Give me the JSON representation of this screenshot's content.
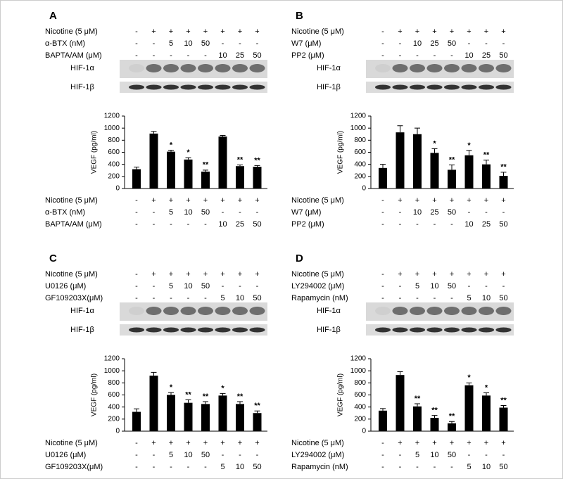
{
  "chart_data": [
    {
      "type": "bar",
      "panel": "A",
      "blot_labels": [
        "HIF-1α",
        "HIF-1β"
      ],
      "y_label": "VEGF (pg/ml)",
      "treatments": [
        {
          "label": "Nicotine (5 μM)",
          "values": [
            "-",
            "+",
            "+",
            "+",
            "+",
            "+",
            "+",
            "+"
          ]
        },
        {
          "label": "α-BTX (nM)",
          "values": [
            "-",
            "-",
            "5",
            "10",
            "50",
            "-",
            "-",
            "-"
          ]
        },
        {
          "label": "BAPTA/AM (μM)",
          "values": [
            "-",
            "-",
            "-",
            "-",
            "-",
            "10",
            "25",
            "50"
          ]
        }
      ],
      "values": [
        320,
        910,
        610,
        480,
        280,
        860,
        370,
        360
      ],
      "errors": [
        35,
        35,
        25,
        30,
        25,
        20,
        20,
        20
      ],
      "annotations": [
        null,
        null,
        "*",
        "*",
        "**",
        null,
        "**",
        "**"
      ],
      "color": "#000000",
      "ylim": [
        0,
        1200
      ],
      "yticks": [
        0,
        200,
        400,
        600,
        800,
        1000,
        1200
      ]
    },
    {
      "type": "bar",
      "panel": "B",
      "blot_labels": [
        "HIF-1α",
        "HIF-1β"
      ],
      "y_label": "VEGF (pg/ml)",
      "treatments": [
        {
          "label": "Nicotine (5 μM)",
          "values": [
            "-",
            "+",
            "+",
            "+",
            "+",
            "+",
            "+",
            "+"
          ]
        },
        {
          "label": "W7 (μM)",
          "values": [
            "-",
            "-",
            "10",
            "25",
            "50",
            "-",
            "-",
            "-"
          ]
        },
        {
          "label": "PP2 (μM)",
          "values": [
            "-",
            "-",
            "-",
            "-",
            "-",
            "10",
            "25",
            "50"
          ]
        }
      ],
      "values": [
        340,
        930,
        900,
        590,
        310,
        550,
        400,
        210
      ],
      "errors": [
        60,
        110,
        100,
        70,
        80,
        80,
        70,
        60
      ],
      "annotations": [
        null,
        null,
        null,
        "*",
        "**",
        "*",
        "**",
        "**"
      ],
      "color": "#000000",
      "ylim": [
        0,
        1200
      ],
      "yticks": [
        0,
        200,
        400,
        600,
        800,
        1000,
        1200
      ]
    },
    {
      "type": "bar",
      "panel": "C",
      "blot_labels": [
        "HIF-1α",
        "HIF-1β"
      ],
      "y_label": "VEGF (pg/ml)",
      "treatments": [
        {
          "label": "Nicotine (5 μM)",
          "values": [
            "-",
            "+",
            "+",
            "+",
            "+",
            "+",
            "+",
            "+"
          ]
        },
        {
          "label": "U0126 (μM)",
          "values": [
            "-",
            "-",
            "5",
            "10",
            "50",
            "-",
            "-",
            "-"
          ]
        },
        {
          "label": "GF109203X(μM)",
          "values": [
            "-",
            "-",
            "-",
            "-",
            "-",
            "5",
            "10",
            "50"
          ]
        }
      ],
      "values": [
        320,
        920,
        600,
        470,
        450,
        590,
        450,
        300
      ],
      "errors": [
        50,
        55,
        40,
        50,
        40,
        35,
        40,
        35
      ],
      "annotations": [
        null,
        null,
        "*",
        "**",
        "**",
        "*",
        "**",
        "**"
      ],
      "color": "#000000",
      "ylim": [
        0,
        1200
      ],
      "yticks": [
        0,
        200,
        400,
        600,
        800,
        1000,
        1200
      ]
    },
    {
      "type": "bar",
      "panel": "D",
      "blot_labels": [
        "HIF-1α",
        "HIF-1β"
      ],
      "y_label": "VEGF (pg/ml)",
      "treatments": [
        {
          "label": "Nicotine (5 μM)",
          "values": [
            "-",
            "+",
            "+",
            "+",
            "+",
            "+",
            "+",
            "+"
          ]
        },
        {
          "label": "LY294002 (μM)",
          "values": [
            "-",
            "-",
            "5",
            "10",
            "50",
            "-",
            "-",
            "-"
          ]
        },
        {
          "label": "Rapamycin (nM)",
          "values": [
            "-",
            "-",
            "-",
            "-",
            "-",
            "5",
            "10",
            "50"
          ]
        }
      ],
      "values": [
        340,
        930,
        410,
        220,
        130,
        760,
        590,
        390
      ],
      "errors": [
        35,
        55,
        45,
        40,
        30,
        40,
        45,
        35
      ],
      "annotations": [
        null,
        null,
        "**",
        "**",
        "**",
        "*",
        "*",
        "**"
      ],
      "color": "#000000",
      "ylim": [
        0,
        1200
      ],
      "yticks": [
        0,
        200,
        400,
        600,
        800,
        1000,
        1200
      ]
    }
  ]
}
